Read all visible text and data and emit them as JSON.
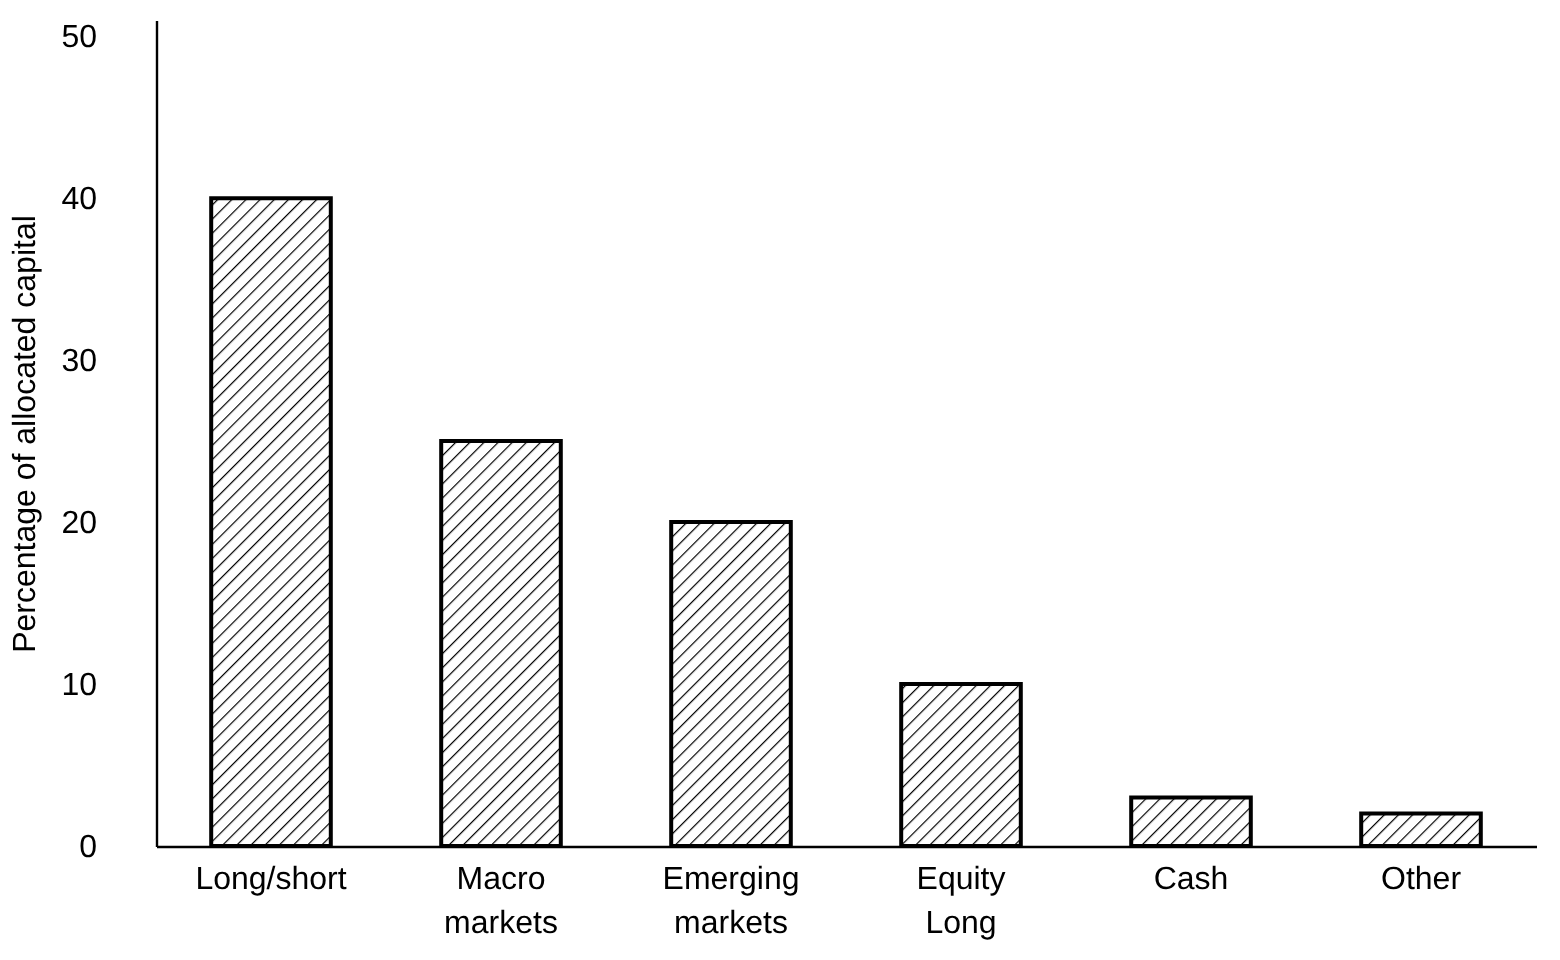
{
  "chart_data": {
    "type": "bar",
    "ylabel": "Percentage of allocated capital",
    "categories": [
      "Long/short",
      "Macro markets",
      "Emerging markets",
      "Equity Long",
      "Cash",
      "Other"
    ],
    "values": [
      40,
      25,
      20,
      10,
      3,
      2
    ],
    "color": "#000000",
    "ylim": [
      0,
      51
    ],
    "yticks": [
      0,
      10,
      20,
      30,
      40,
      50
    ],
    "grid": false
  }
}
